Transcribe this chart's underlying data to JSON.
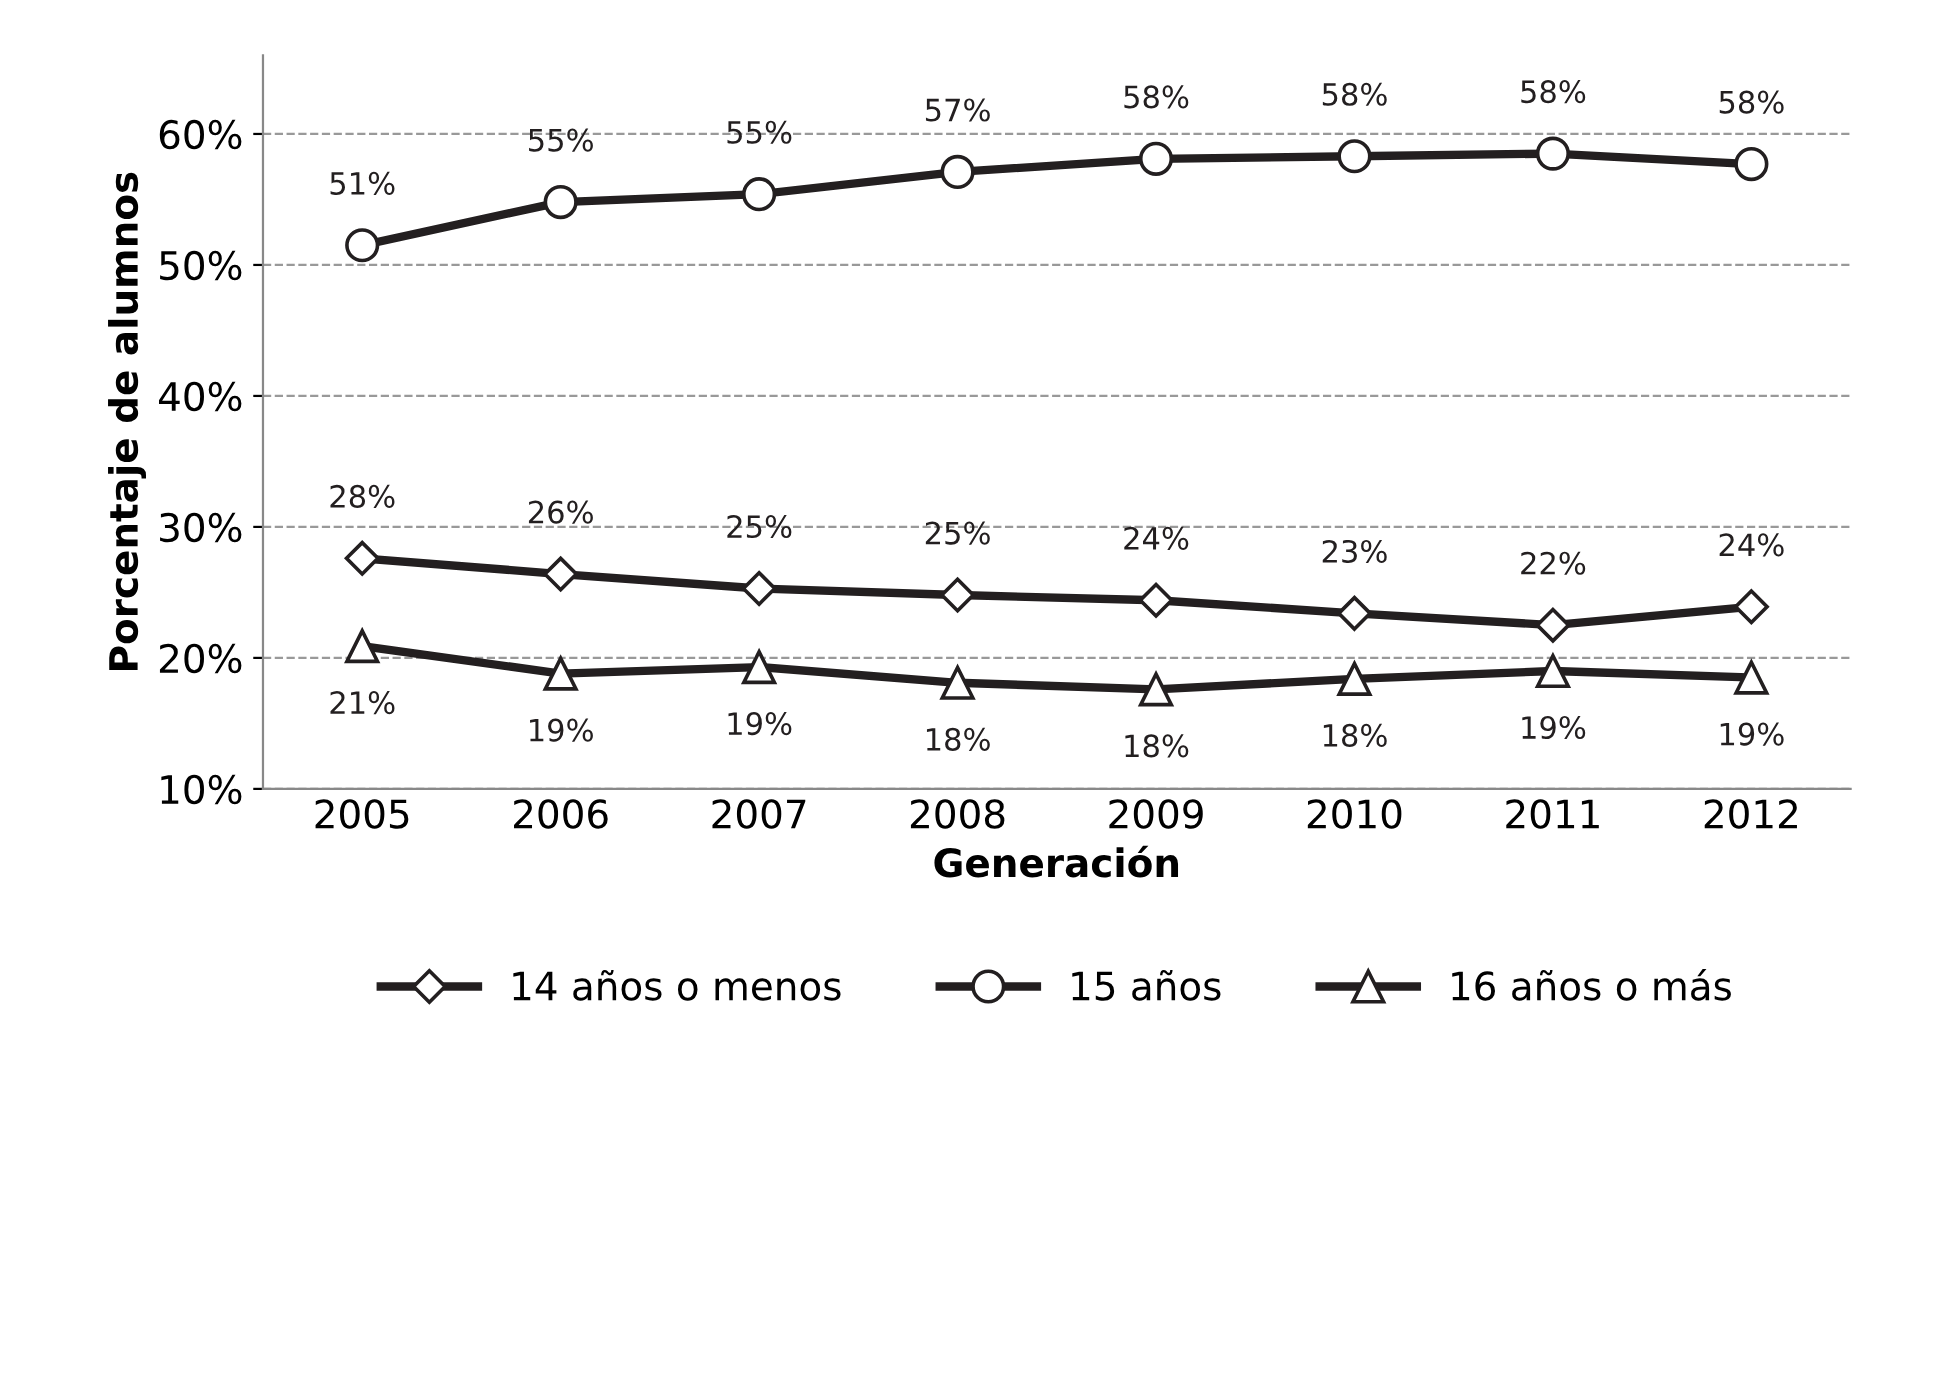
{
  "chart_data": {
    "type": "line",
    "xlabel": "Generación",
    "ylabel": "Porcentaje de alumnos",
    "categories": [
      "2005",
      "2006",
      "2007",
      "2008",
      "2009",
      "2010",
      "2011",
      "2012"
    ],
    "series": [
      {
        "name": "14 años o menos",
        "color": "#231f20",
        "marker": "diamond",
        "values": [
          27.6,
          26.4,
          25.3,
          24.8,
          24.4,
          23.4,
          22.5,
          23.9
        ],
        "value_labels": [
          "28%",
          "26%",
          "25%",
          "25%",
          "24%",
          "23%",
          "22%",
          "24%"
        ]
      },
      {
        "name": "15 años",
        "color": "#231f20",
        "marker": "circle",
        "values": [
          51.5,
          54.8,
          55.4,
          57.1,
          58.1,
          58.3,
          58.5,
          57.7
        ],
        "value_labels": [
          "51%",
          "55%",
          "55%",
          "57%",
          "58%",
          "58%",
          "58%",
          "58%"
        ]
      },
      {
        "name": "16 años o más",
        "color": "#231f20",
        "marker": "triangle",
        "values": [
          20.9,
          18.8,
          19.3,
          18.1,
          17.6,
          18.4,
          19.0,
          18.5
        ],
        "value_labels": [
          "21%",
          "19%",
          "19%",
          "18%",
          "18%",
          "18%",
          "19%",
          "19%"
        ]
      }
    ],
    "ylim": [
      10,
      66
    ],
    "yticks": [
      {
        "value": 10,
        "label": "10%"
      },
      {
        "value": 20,
        "label": "20%"
      },
      {
        "value": 30,
        "label": "30%"
      },
      {
        "value": 40,
        "label": "40%"
      },
      {
        "value": 50,
        "label": "50%"
      },
      {
        "value": 60,
        "label": "60%"
      }
    ],
    "grid": "y",
    "legend": "bottom",
    "line_style": "solid"
  }
}
